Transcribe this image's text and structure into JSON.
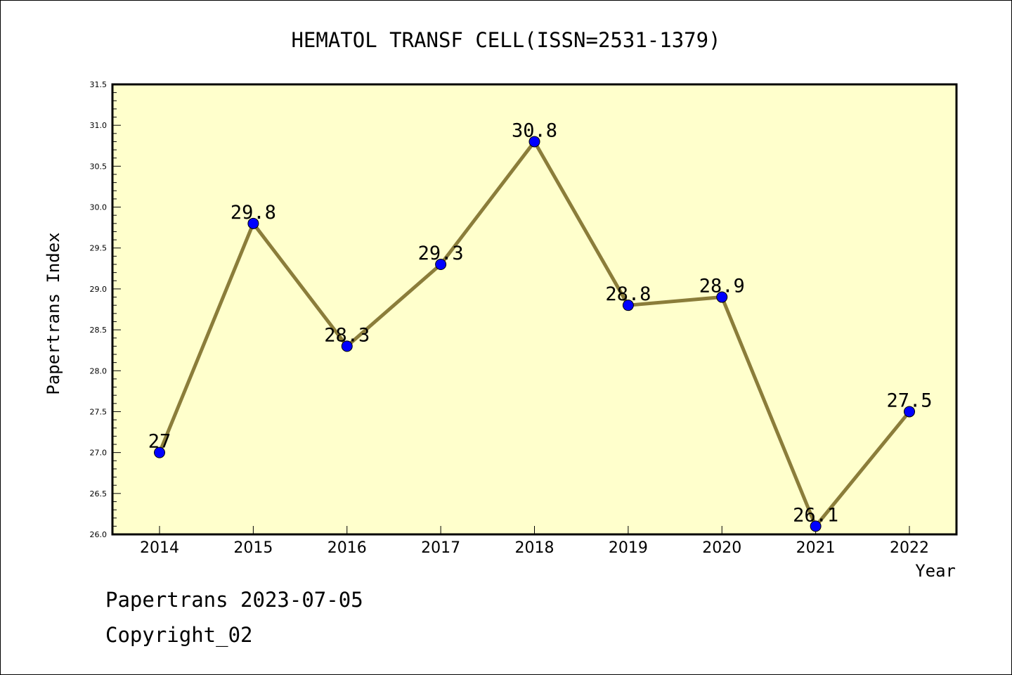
{
  "chart_data": {
    "type": "line",
    "title": "HEMATOL TRANSF CELL(ISSN=2531-1379)",
    "xlabel": "Year",
    "ylabel": "Papertrans Index",
    "categories": [
      "2014",
      "2015",
      "2016",
      "2017",
      "2018",
      "2019",
      "2020",
      "2021",
      "2022"
    ],
    "values": [
      27.0,
      29.8,
      28.3,
      29.3,
      30.8,
      28.8,
      28.9,
      26.1,
      27.5
    ],
    "data_labels": [
      "27",
      "29.8",
      "28.3",
      "29.3",
      "30.8",
      "28.8",
      "28.9",
      "26.1",
      "27.5"
    ],
    "ylim": [
      26.0,
      31.5
    ],
    "yticks": [
      "26.0",
      "26.5",
      "27.0",
      "27.5",
      "28.0",
      "28.5",
      "29.0",
      "29.5",
      "30.0",
      "30.5",
      "31.0",
      "31.5"
    ],
    "grid": false,
    "colors": {
      "plot_background": "#ffffcc",
      "line": "#8b7d3a",
      "marker": "#0000ff"
    }
  },
  "footer": {
    "line1": "Papertrans 2023-07-05",
    "line2": "Copyright_02"
  }
}
